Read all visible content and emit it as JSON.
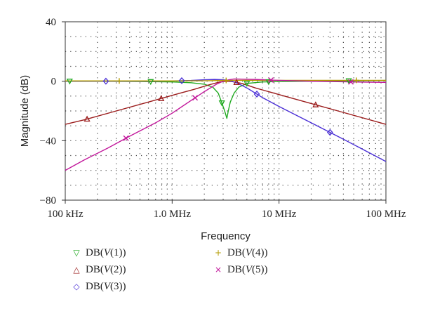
{
  "chart_data": {
    "type": "line",
    "xlabel": "Frequency",
    "ylabel": "Magnitude (dB)",
    "xscale": "log",
    "xlim": [
      100000,
      100000000
    ],
    "ylim": [
      -80,
      40
    ],
    "grid": true,
    "grid_style": "dotted",
    "legend_position": "bottom",
    "x_ticks": [
      {
        "value": 100000,
        "label": "100 kHz"
      },
      {
        "value": 1000000,
        "label": "1.0 MHz"
      },
      {
        "value": 10000000,
        "label": "10 MHz"
      },
      {
        "value": 100000000,
        "label": "100 MHz"
      }
    ],
    "y_ticks": [
      {
        "value": 40,
        "label": "40"
      },
      {
        "value": 0,
        "label": "0"
      },
      {
        "value": -40,
        "label": "−40"
      },
      {
        "value": -80,
        "label": "−80"
      }
    ],
    "series": [
      {
        "name": "DB(V(1))",
        "legend_prefix": "DB(",
        "legend_var": "V",
        "legend_suffix": "(1))",
        "color": "#22aa22",
        "marker": "triangle-down",
        "x": [
          100000,
          200000,
          500000,
          1000000,
          1500000,
          2000000,
          2400000,
          2700000,
          2900000,
          3100000,
          3250000,
          3350000,
          3500000,
          3800000,
          4200000,
          5000000,
          7000000,
          10000000,
          20000000,
          50000000,
          100000000
        ],
        "y": [
          0,
          0,
          -0.2,
          -0.5,
          -1,
          -2,
          -4,
          -8,
          -14,
          -20,
          -25,
          -20,
          -14,
          -8,
          -4,
          -1.5,
          -0.5,
          -0.2,
          0,
          0.3,
          0.5
        ],
        "marker_x": [
          110000,
          630000,
          2920000,
          5000000,
          8000000,
          45000000
        ]
      },
      {
        "name": "DB(V(2))",
        "legend_prefix": "DB(",
        "legend_var": "V",
        "legend_suffix": "(2))",
        "color": "#9b1c1c",
        "marker": "triangle-up",
        "x": [
          100000,
          150000,
          300000,
          600000,
          1000000,
          1600000,
          2200000,
          2800000,
          3200000,
          3600000,
          4500000,
          6000000,
          10000000,
          20000000,
          40000000,
          100000000
        ],
        "y": [
          -29,
          -26,
          -20,
          -14,
          -9.5,
          -5.5,
          -2.5,
          -0.5,
          0,
          -0.2,
          -1.5,
          -4.5,
          -9,
          -15,
          -21,
          -29
        ],
        "marker_x": [
          160000,
          790000,
          4000000,
          22000000
        ]
      },
      {
        "name": "DB(V(3))",
        "legend_prefix": "DB(",
        "legend_var": "V",
        "legend_suffix": "(3))",
        "color": "#4a2fd6",
        "marker": "diamond",
        "x": [
          100000,
          200000,
          400000,
          700000,
          1000000,
          1500000,
          2000000,
          2500000,
          3000000,
          3400000,
          4000000,
          5000000,
          7000000,
          10000000,
          20000000,
          40000000,
          100000000
        ],
        "y": [
          0,
          0,
          0,
          0,
          0.2,
          0.5,
          1,
          1.2,
          1,
          0.5,
          -1,
          -4.5,
          -11,
          -17,
          -28,
          -39,
          -54
        ],
        "marker_x": [
          240000,
          1230000,
          6200000,
          30000000
        ]
      },
      {
        "name": "DB(V(4))",
        "legend_prefix": "DB(",
        "legend_var": "V",
        "legend_suffix": "(4))",
        "color": "#b39b00",
        "marker": "plus",
        "x": [
          100000,
          300000,
          1000000,
          2000000,
          3000000,
          4000000,
          10000000,
          30000000,
          100000000
        ],
        "y": [
          0.2,
          0.2,
          0.2,
          0.3,
          0.5,
          0.6,
          0.6,
          0.6,
          0.6
        ],
        "marker_x": [
          320000,
          3200000,
          53000000
        ]
      },
      {
        "name": "DB(V(5))",
        "legend_prefix": "DB(",
        "legend_var": "V",
        "legend_suffix": "(5))",
        "color": "#c2179b",
        "marker": "x",
        "x": [
          100000,
          150000,
          250000,
          400000,
          700000,
          1000000,
          1500000,
          2000000,
          2600000,
          3000000,
          3400000,
          3800000,
          4500000,
          6000000,
          10000000,
          20000000,
          50000000,
          100000000
        ],
        "y": [
          -60,
          -53,
          -45,
          -37,
          -28,
          -21.5,
          -13,
          -7,
          -2,
          0,
          1,
          1.5,
          1.4,
          1.2,
          0.6,
          0,
          -0.5,
          -0.8
        ],
        "marker_x": [
          370000,
          1640000,
          8400000,
          47000000
        ]
      }
    ]
  }
}
